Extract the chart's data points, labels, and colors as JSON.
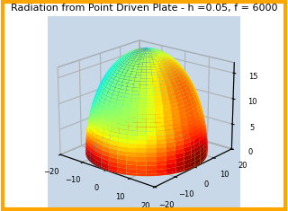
{
  "title": "Radiation from Point Driven Plate - h =0.05, f = 6000",
  "title_fontsize": 8,
  "xlim": [
    -20,
    20
  ],
  "ylim": [
    -20,
    20
  ],
  "zlim": [
    0,
    17
  ],
  "xticks": [
    -20,
    -10,
    0,
    10,
    20
  ],
  "yticks": [
    -20,
    -10,
    0,
    10,
    20
  ],
  "zticks": [
    0,
    5,
    10,
    15
  ],
  "colormap": "jet",
  "bg_color": "#ffffff",
  "border_color": "#FFA500",
  "R": 20,
  "azim": -50,
  "elev": 20
}
